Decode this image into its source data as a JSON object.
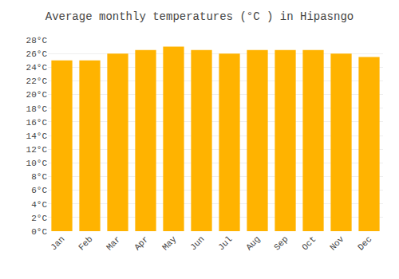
{
  "chart_data": {
    "type": "bar",
    "title": "Average monthly temperatures (°C ) in Hipasngo",
    "categories": [
      "Jan",
      "Feb",
      "Mar",
      "Apr",
      "May",
      "Jun",
      "Jul",
      "Aug",
      "Sep",
      "Oct",
      "Nov",
      "Dec"
    ],
    "values": [
      25.0,
      25.0,
      26.0,
      26.5,
      27.0,
      26.5,
      26.0,
      26.5,
      26.5,
      26.5,
      26.0,
      25.5
    ],
    "color": "#FFB300",
    "ylim": [
      0,
      28
    ],
    "yticks": [
      {
        "value": 0,
        "label": "0°C"
      },
      {
        "value": 2,
        "label": "2°C"
      },
      {
        "value": 4,
        "label": "4°C"
      },
      {
        "value": 6,
        "label": "6°C"
      },
      {
        "value": 8,
        "label": "8°C"
      },
      {
        "value": 10,
        "label": "10°C"
      },
      {
        "value": 12,
        "label": "12°C"
      },
      {
        "value": 14,
        "label": "14°C"
      },
      {
        "value": 16,
        "label": "16°C"
      },
      {
        "value": 18,
        "label": "18°C"
      },
      {
        "value": 20,
        "label": "20°C"
      },
      {
        "value": 22,
        "label": "22°C"
      },
      {
        "value": 24,
        "label": "24°C"
      },
      {
        "value": 26,
        "label": "26°C"
      },
      {
        "value": 28,
        "label": "28°C"
      }
    ],
    "grid": true
  }
}
